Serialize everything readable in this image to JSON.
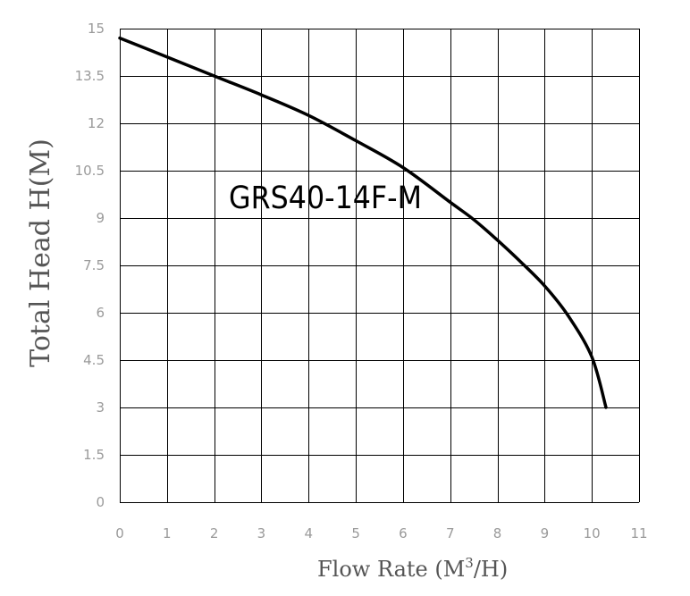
{
  "chart_data": {
    "type": "line",
    "title": "",
    "annotation": "GRS40-14F-M",
    "xlabel": {
      "base": "Flow Rate (M",
      "superscript": "3",
      "suffix": "/H)"
    },
    "ylabel": "Total Head H(M)",
    "xlim": [
      0,
      11
    ],
    "ylim": [
      0,
      15
    ],
    "x_ticks": [
      0,
      1,
      2,
      3,
      4,
      5,
      6,
      7,
      8,
      9,
      10,
      11
    ],
    "x_tick_labels": [
      "0",
      "1",
      "2",
      "3",
      "4",
      "5",
      "6",
      "7",
      "8",
      "9",
      "10",
      "11"
    ],
    "y_ticks": [
      0,
      1.5,
      3,
      4.5,
      6,
      7.5,
      9,
      10.5,
      12,
      13.5,
      15
    ],
    "y_tick_labels": [
      "0",
      "1.5",
      "3",
      "4.5",
      "6",
      "7.5",
      "9",
      "10.5",
      "12",
      "13.5",
      "15"
    ],
    "grid": true,
    "series": [
      {
        "x": [
          0,
          1,
          2,
          3,
          4,
          5,
          6,
          7,
          7.5,
          8,
          8.5,
          9,
          9.5,
          10,
          10.3
        ],
        "y": [
          14.7,
          14.1,
          13.5,
          12.9,
          12.25,
          11.45,
          10.6,
          9.5,
          8.95,
          8.3,
          7.6,
          6.85,
          5.9,
          4.6,
          3.0
        ],
        "color": "#000000"
      }
    ]
  }
}
